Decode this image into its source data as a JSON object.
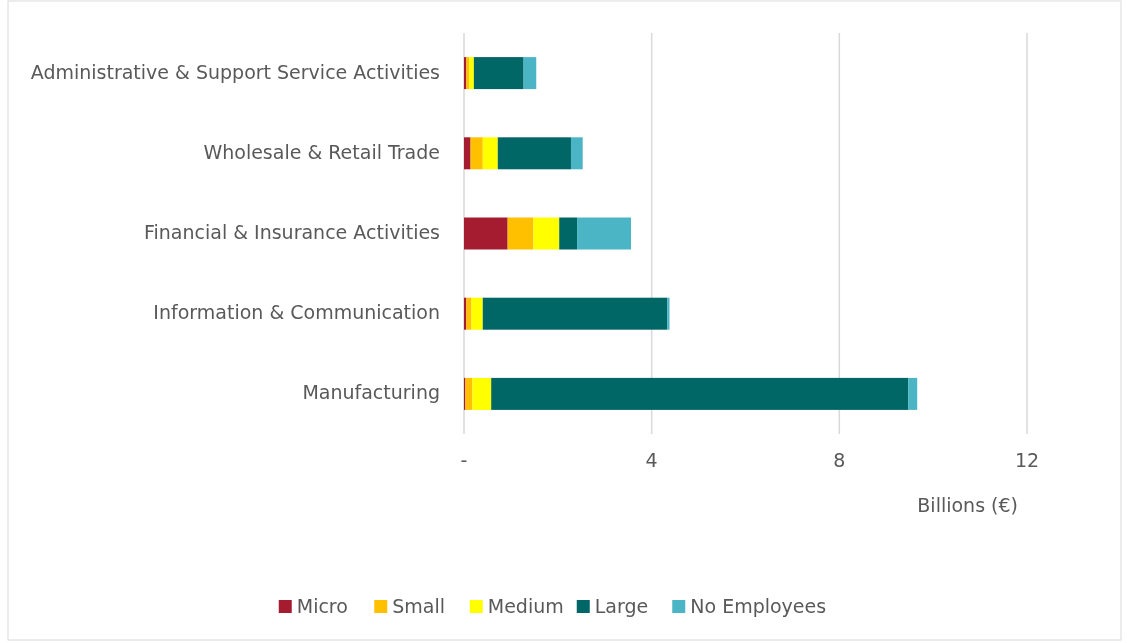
{
  "chart_data": {
    "type": "bar",
    "orientation": "horizontal",
    "stacked": true,
    "xlabel": "Billions (€)",
    "categories": [
      "Administrative & Support Service Activities",
      "Wholesale & Retail Trade",
      "Financial & Insurance Activities",
      "Information & Communication",
      "Manufacturing"
    ],
    "series": [
      {
        "name": "Micro",
        "color": "#a51c30",
        "values": [
          0.05,
          0.14,
          0.93,
          0.05,
          0.03
        ]
      },
      {
        "name": "Small",
        "color": "#ffc000",
        "values": [
          0.06,
          0.26,
          0.55,
          0.11,
          0.15
        ]
      },
      {
        "name": "Medium",
        "color": "#ffff00",
        "values": [
          0.1,
          0.32,
          0.55,
          0.24,
          0.4
        ]
      },
      {
        "name": "Large",
        "color": "#006666",
        "values": [
          1.06,
          1.56,
          0.38,
          3.93,
          8.89
        ]
      },
      {
        "name": "No Employees",
        "color": "#4bb5c5",
        "values": [
          0.27,
          0.25,
          1.15,
          0.05,
          0.19
        ]
      }
    ],
    "xlim": [
      0,
      12
    ],
    "xticks": [
      {
        "value": 0,
        "label": "-"
      },
      4,
      8,
      12
    ],
    "grid": "x",
    "legend": "bottom"
  }
}
